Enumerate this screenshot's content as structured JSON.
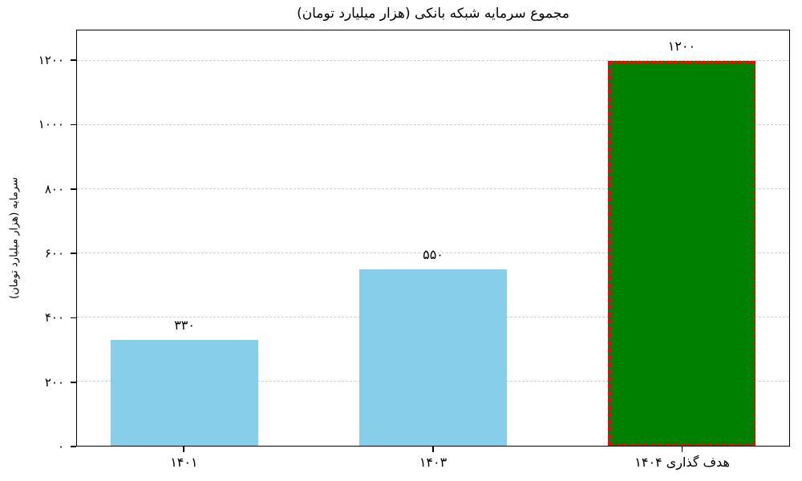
{
  "chart_data": {
    "type": "bar",
    "title": "مجموع سرمایه شبکه بانکی (هزار میلیارد تومان)",
    "ylabel": "سرمایه (هزار میلیارد تومان)",
    "xlabel": "",
    "categories": [
      "۱۴۰۱",
      "۱۴۰۳",
      "هدف گذاری ۱۴۰۴"
    ],
    "values": [
      330,
      550,
      1200
    ],
    "value_labels": [
      "۳۳۰",
      "۵۵۰",
      "۱۲۰۰"
    ],
    "yticks": {
      "values": [
        0,
        200,
        400,
        600,
        800,
        1000,
        1200
      ],
      "labels": [
        "۰",
        "۲۰۰",
        "۴۰۰",
        "۶۰۰",
        "۸۰۰",
        "۱۰۰۰",
        "۱۲۰۰"
      ]
    },
    "ylim": [
      0,
      1295
    ],
    "grid": {
      "horizontal": true,
      "style": "dashed",
      "color": "#cfcfcf"
    },
    "legend": "none",
    "bar_colors": [
      "#87CEEB",
      "#87CEEB",
      "#008000"
    ],
    "highlight": {
      "index": 2,
      "border_color": "#FF0000",
      "border_style": "dashed",
      "border_width_px": 3
    },
    "layout": {
      "bar_centers_pct": [
        15.1,
        50.0,
        84.9
      ],
      "bar_width_pct": 20.8
    }
  }
}
